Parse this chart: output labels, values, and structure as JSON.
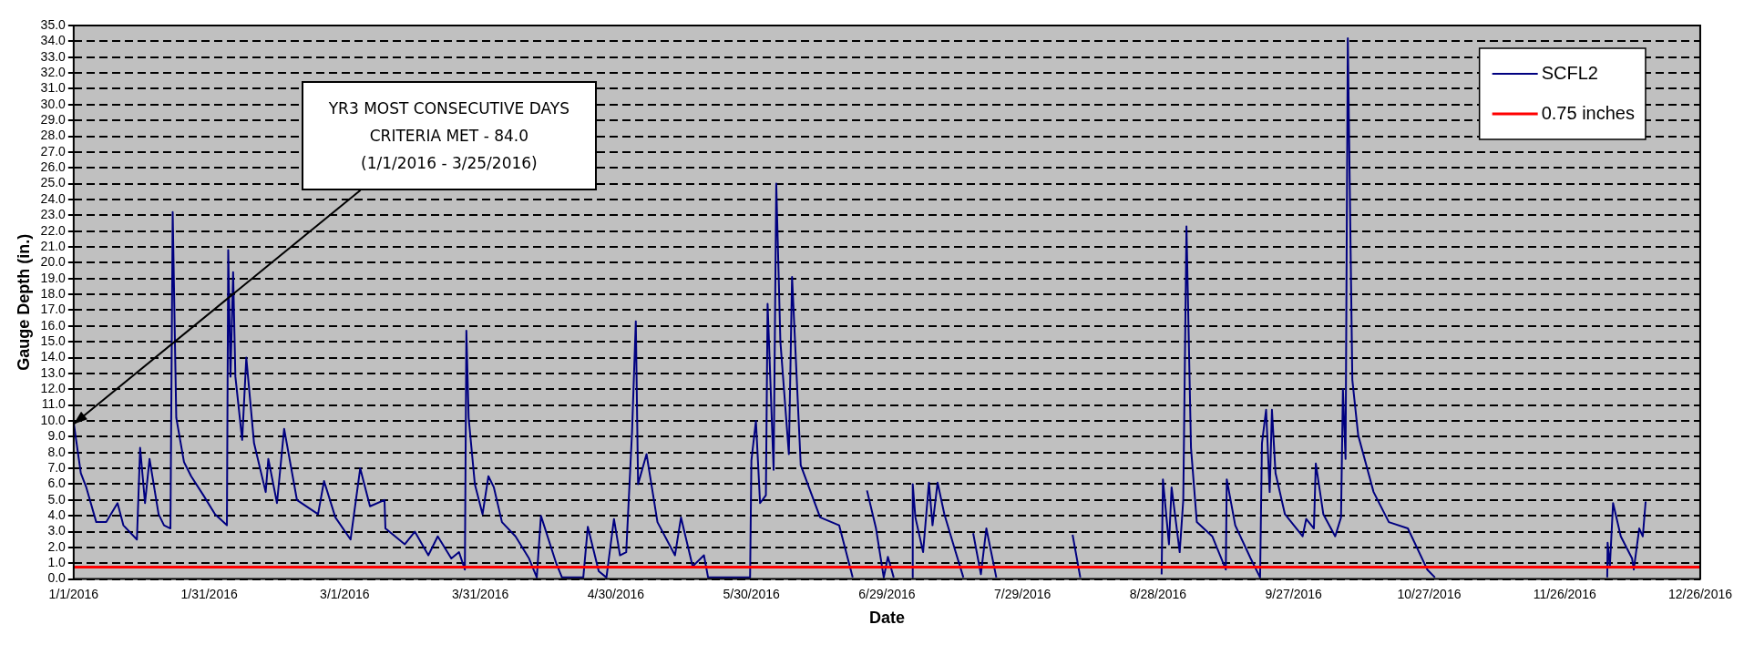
{
  "chart_data": {
    "type": "line",
    "xlabel": "Date",
    "ylabel": "Gauge Depth (in.)",
    "x": [
      "2016-01-01T00:00",
      "2016-01-02T14:00",
      "2016-01-03T19:00",
      "2016-01-06T00:00",
      "2016-01-08T05:00",
      "2016-01-10T17:00",
      "2016-01-12T00:00",
      "2016-01-15T00:00",
      "2016-01-15T17:00",
      "2016-01-16T19:00",
      "2016-01-17T19:00",
      "2016-01-19T19:00",
      "2016-01-21T00:00",
      "2016-01-22T10:00",
      "2016-01-22T22:00",
      "2016-01-23T17:00",
      "2016-01-25T10:00",
      "2016-01-27T00:00",
      "2016-01-29T17:00",
      "2016-02-01T07:00",
      "2016-02-03T22:00",
      "2016-02-04T05:00",
      "2016-02-04T17:00",
      "2016-02-05T07:00",
      "2016-02-05T19:00",
      "2016-02-07T07:00",
      "2016-02-08T05:00",
      "2016-02-09T22:00",
      "2016-02-12T12:00",
      "2016-02-13T02:00",
      "2016-02-15T00:00",
      "2016-02-16T14:00",
      "2016-02-19T10:00",
      "2016-02-24T02:00",
      "2016-02-25T10:00",
      "2016-02-27T22:00",
      "2016-03-02T07:00",
      "2016-03-04T10:00",
      "2016-03-06T14:00",
      "2016-03-09T19:00",
      "2016-03-10T00:00",
      "2016-03-14T07:00",
      "2016-03-16T12:00",
      "2016-03-19T12:00",
      "2016-03-21T14:00",
      "2016-03-24T14:00",
      "2016-03-26T07:00",
      "2016-03-27T14:00",
      "2016-03-27T22:00",
      "2016-03-28T10:00",
      "2016-03-29T19:00",
      "2016-03-31T12:00",
      "2016-04-01T19:00",
      "2016-04-03T00:00",
      "2016-04-04T19:00",
      "2016-04-07T19:00",
      "2016-04-10T19:00",
      "2016-04-12T12:00",
      "2016-04-13T10:00",
      "2016-04-16T19:00",
      "2016-04-18T02:00",
      "2016-04-22T19:00",
      "2016-04-23T19:00",
      "2016-04-26T05:00",
      "2016-04-27T22:00",
      "2016-04-29T14:00",
      "2016-04-30T22:00",
      "2016-05-02T07:00",
      "2016-05-03T14:00",
      "2016-05-04T10:00",
      "2016-05-04T22:00",
      "2016-05-06T19:00",
      "2016-05-09T05:00",
      "2016-05-13T02:00",
      "2016-05-14T10:00",
      "2016-05-17T00:00",
      "2016-05-19T12:00",
      "2016-05-20T10:00",
      "2016-05-29T17:00",
      "2016-05-30T00:00",
      "2016-05-31T00:00",
      "2016-05-31T22:00",
      "2016-06-02T05:00",
      "2016-06-02T14:00",
      "2016-06-03T22:00",
      "2016-06-04T12:00",
      "2016-06-05T10:00",
      "2016-06-07T07:00",
      "2016-06-08T00:00",
      "2016-06-09T22:00",
      "2016-06-14T05:00",
      "2016-06-18T10:00",
      "2016-06-21T10:00",
      "2016-06-23T00:00",
      "2016-06-24T14:00",
      "2016-06-26T14:00",
      "2016-06-28T07:00",
      "2016-06-29T05:00",
      "2016-06-30T12:00",
      "2016-07-02T00:00",
      "2016-07-04T14:00",
      "2016-07-04T17:00",
      "2016-07-05T07:00",
      "2016-07-07T00:00",
      "2016-07-08T07:00",
      "2016-07-09T02:00",
      "2016-07-10T05:00",
      "2016-07-11T17:00",
      "2016-07-14T05:00",
      "2016-07-15T22:00",
      "2016-07-17T00:00",
      "2016-07-18T02:00",
      "2016-07-19T19:00",
      "2016-07-21T00:00",
      "2016-07-23T05:00",
      "2016-07-30T00:00",
      "2016-08-09T02:00",
      "2016-08-10T19:00",
      "2016-08-18T00:00",
      "2016-08-28T19:00",
      "2016-08-29T02:00",
      "2016-08-30T10:00",
      "2016-08-31T00:00",
      "2016-09-01T19:00",
      "2016-09-02T14:00",
      "2016-09-03T07:00",
      "2016-09-04T07:00",
      "2016-09-05T14:00",
      "2016-09-09T00:00",
      "2016-09-12T00:00",
      "2016-09-12T05:00",
      "2016-09-14T02:00",
      "2016-09-17T12:00",
      "2016-09-19T14:00",
      "2016-09-20T00:00",
      "2016-09-20T22:00",
      "2016-09-21T17:00",
      "2016-09-22T05:00",
      "2016-09-23T00:00",
      "2016-09-25T02:00",
      "2016-09-29T00:00",
      "2016-09-29T19:00",
      "2016-10-01T12:00",
      "2016-10-01T22:00",
      "2016-10-03T14:00",
      "2016-10-06T05:00",
      "2016-10-07T12:00",
      "2016-10-07T22:00",
      "2016-10-08T12:00",
      "2016-10-09T00:00",
      "2016-10-10T00:00",
      "2016-10-11T07:00",
      "2016-10-14T17:00",
      "2016-10-18T02:00",
      "2016-10-22T07:00",
      "2016-10-26T14:00",
      "2016-10-28T07:00",
      "2016-11-06T00:00",
      "2016-12-05T10:00",
      "2016-12-05T12:00",
      "2016-12-06T00:00",
      "2016-12-06T17:00",
      "2016-12-08T10:00",
      "2016-12-10T22:00",
      "2016-12-11T07:00",
      "2016-12-12T12:00",
      "2016-12-13T07:00",
      "2016-12-13T22:00"
    ],
    "series": [
      {
        "name": "SCFL2",
        "color": "#000080",
        "values": [
          9.9,
          6.7,
          5.8,
          3.6,
          3.6,
          4.8,
          3.4,
          2.5,
          8.3,
          4.8,
          7.6,
          4.1,
          3.4,
          3.2,
          23.2,
          10.2,
          7.4,
          6.5,
          5.3,
          4.1,
          3.4,
          20.8,
          12.8,
          19.4,
          12.8,
          8.8,
          14.0,
          8.6,
          5.5,
          7.6,
          4.8,
          9.5,
          5.0,
          4.1,
          6.2,
          3.9,
          2.5,
          7.0,
          4.6,
          5.0,
          3.2,
          2.2,
          3.0,
          1.5,
          2.7,
          1.3,
          1.7,
          0.6,
          15.7,
          10.2,
          6.0,
          4.1,
          6.5,
          5.8,
          3.6,
          2.7,
          1.3,
          0.1,
          4.0,
          1.0,
          0.1,
          0.1,
          3.3,
          0.5,
          0.1,
          3.8,
          1.5,
          1.7,
          9.3,
          16.3,
          6.0,
          7.9,
          3.6,
          1.5,
          3.9,
          0.8,
          1.5,
          0.1,
          0.1,
          7.5,
          10.0,
          4.8,
          5.3,
          17.4,
          6.9,
          25.0,
          15.0,
          7.9,
          19.1,
          7.2,
          3.9,
          3.4,
          0.1,
          null,
          5.6,
          3.2,
          0.1,
          1.4,
          0.1,
          null,
          0.1,
          6.0,
          3.9,
          1.7,
          6.1,
          3.4,
          6.1,
          4.1,
          1.7,
          0.1,
          null,
          2.9,
          0.3,
          3.2,
          0.1,
          null,
          2.8,
          0.1,
          null,
          0.3,
          6.3,
          2.2,
          5.8,
          1.7,
          5.0,
          22.3,
          8.3,
          3.6,
          2.7,
          0.6,
          6.3,
          3.4,
          1.3,
          0.1,
          8.6,
          10.7,
          5.5,
          10.7,
          6.7,
          4.1,
          2.7,
          3.8,
          3.2,
          7.3,
          4.1,
          2.7,
          3.9,
          12.0,
          7.6,
          34.2,
          12.6,
          9.1,
          5.5,
          3.6,
          3.2,
          0.6,
          0.1,
          null,
          0.1,
          2.3,
          0.8,
          4.8,
          2.7,
          1.3,
          0.6,
          3.2,
          2.7,
          4.9
        ]
      }
    ],
    "ref_lines": [
      {
        "axis": "y",
        "value": 0.75,
        "label": "0.75 inches",
        "color": "#ff0000"
      }
    ],
    "annotations": [
      {
        "text": "YR3 MOST CONSECUTIVE DAYS\nCRITERIA MET - 84.0\n(1/1/2016 - 3/25/2016)",
        "x": "2016-01-01",
        "y": 9.8
      }
    ],
    "xlim": [
      "2016-01-01",
      "2016-12-26"
    ],
    "xticks": [
      {
        "value": "2016-01-01",
        "label": "1/1/2016"
      },
      {
        "value": "2016-01-31",
        "label": "1/31/2016"
      },
      {
        "value": "2016-03-01",
        "label": "3/1/2016"
      },
      {
        "value": "2016-03-31",
        "label": "3/31/2016"
      },
      {
        "value": "2016-04-30",
        "label": "4/30/2016"
      },
      {
        "value": "2016-05-30",
        "label": "5/30/2016"
      },
      {
        "value": "2016-06-29",
        "label": "6/29/2016"
      },
      {
        "value": "2016-07-29",
        "label": "7/29/2016"
      },
      {
        "value": "2016-08-28",
        "label": "8/28/2016"
      },
      {
        "value": "2016-09-27",
        "label": "9/27/2016"
      },
      {
        "value": "2016-10-27",
        "label": "10/27/2016"
      },
      {
        "value": "2016-11-26",
        "label": "11/26/2016"
      },
      {
        "value": "2016-12-26",
        "label": "12/26/2016"
      }
    ],
    "ylim": [
      0,
      35
    ],
    "yticks": [
      {
        "value": 0,
        "label": "0.0"
      },
      {
        "value": 1,
        "label": "1.0"
      },
      {
        "value": 2,
        "label": "2.0"
      },
      {
        "value": 3,
        "label": "3.0"
      },
      {
        "value": 4,
        "label": "4.0"
      },
      {
        "value": 5,
        "label": "5.0"
      },
      {
        "value": 6,
        "label": "6.0"
      },
      {
        "value": 7,
        "label": "7.0"
      },
      {
        "value": 8,
        "label": "8.0"
      },
      {
        "value": 9,
        "label": "9.0"
      },
      {
        "value": 10,
        "label": "10.0"
      },
      {
        "value": 11,
        "label": "11.0"
      },
      {
        "value": 12,
        "label": "12.0"
      },
      {
        "value": 13,
        "label": "13.0"
      },
      {
        "value": 14,
        "label": "14.0"
      },
      {
        "value": 15,
        "label": "15.0"
      },
      {
        "value": 16,
        "label": "16.0"
      },
      {
        "value": 17,
        "label": "17.0"
      },
      {
        "value": 18,
        "label": "18.0"
      },
      {
        "value": 19,
        "label": "19.0"
      },
      {
        "value": 20,
        "label": "20.0"
      },
      {
        "value": 21,
        "label": "21.0"
      },
      {
        "value": 22,
        "label": "22.0"
      },
      {
        "value": 23,
        "label": "23.0"
      },
      {
        "value": 24,
        "label": "24.0"
      },
      {
        "value": 25,
        "label": "25.0"
      },
      {
        "value": 26,
        "label": "26.0"
      },
      {
        "value": 27,
        "label": "27.0"
      },
      {
        "value": 28,
        "label": "28.0"
      },
      {
        "value": 29,
        "label": "29.0"
      },
      {
        "value": 30,
        "label": "30.0"
      },
      {
        "value": 31,
        "label": "31.0"
      },
      {
        "value": 32,
        "label": "32.0"
      },
      {
        "value": 33,
        "label": "33.0"
      },
      {
        "value": 34,
        "label": "34.0"
      },
      {
        "value": 35,
        "label": "35.0"
      }
    ],
    "grid": "y",
    "legend": "top right",
    "marker": "none",
    "line_style": "solid"
  }
}
